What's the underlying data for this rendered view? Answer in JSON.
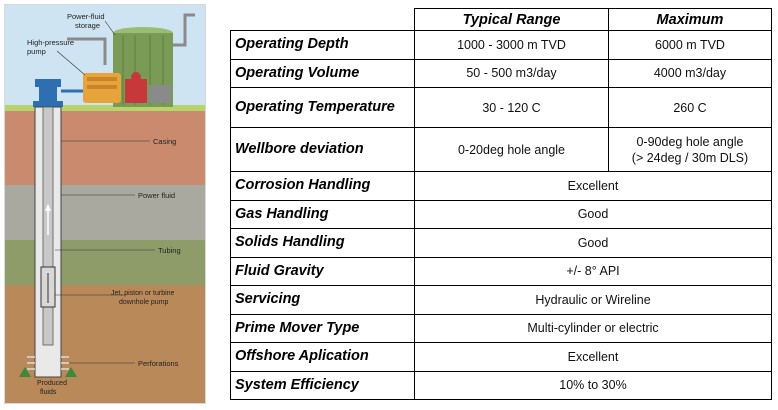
{
  "illustration": {
    "labels": {
      "power_fluid_storage": [
        "Power-fluid",
        "storage"
      ],
      "high_pressure_pump": [
        "High-pressure",
        "pump"
      ],
      "casing": "Casing",
      "power_fluid": "Power fluid",
      "tubing": "Tubing",
      "downhole_pump": [
        "Jet, piston or turbine",
        "downhole pump"
      ],
      "perforations": "Perforations",
      "produced_fluids": [
        "Produced",
        "fluids"
      ]
    },
    "colors": {
      "sky": "#cfe4f2",
      "ground_top": "#c98a6e",
      "ground_mid": "#a9a9a0",
      "ground_green": "#8e9c6a",
      "ground_bottom": "#b9895a",
      "tank": "#7a9b56",
      "pump": "#e7a43a",
      "wellhead": "#2d6fb0"
    }
  },
  "table": {
    "headers": [
      "",
      "Typical Range",
      "Maximum"
    ],
    "rows": [
      {
        "label": "Operating Depth",
        "typical": "1000 - 3000 m TVD",
        "maximum": "6000 m TVD"
      },
      {
        "label": "Operating Volume",
        "typical": "50 - 500 m3/day",
        "maximum": "4000 m3/day"
      },
      {
        "label": "Operating Temperature",
        "typical": "30 - 120 C",
        "maximum": "260 C"
      },
      {
        "label": "Wellbore deviation",
        "typical": "0-20deg hole angle",
        "maximum": [
          "0-90deg hole angle",
          "(> 24deg / 30m DLS)"
        ]
      },
      {
        "label": "Corrosion Handling",
        "value": "Excellent"
      },
      {
        "label": "Gas Handling",
        "value": "Good"
      },
      {
        "label": "Solids Handling",
        "value": "Good"
      },
      {
        "label": "Fluid Gravity",
        "value": "+/- 8° API"
      },
      {
        "label": "Servicing",
        "value": "Hydraulic or Wireline"
      },
      {
        "label": "Prime Mover Type",
        "value": "Multi-cylinder or electric"
      },
      {
        "label": "Offshore Aplication",
        "value": "Excellent"
      },
      {
        "label": "System Efficiency",
        "value": "10% to 30%"
      }
    ]
  }
}
